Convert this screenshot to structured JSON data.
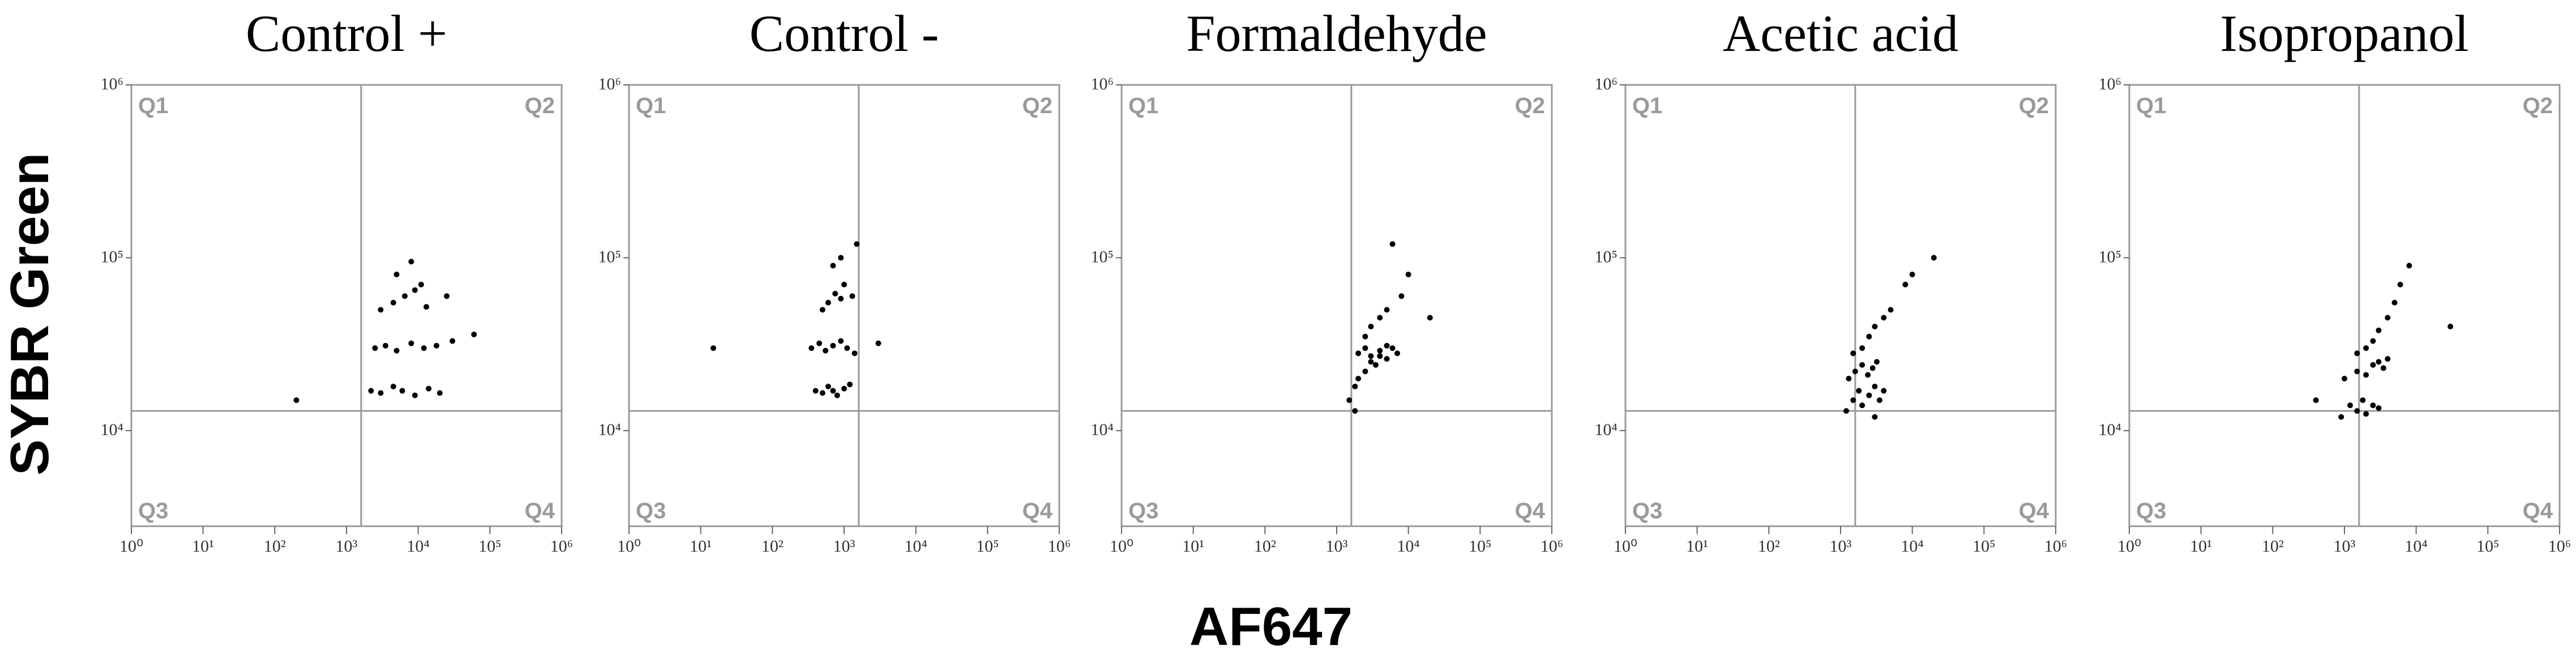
{
  "ylabel": "SYBR Green",
  "xlabel": "AF647",
  "chart_data": [
    {
      "type": "scatter",
      "title": "Control +",
      "log_x": true,
      "log_y": true,
      "color": "#000000",
      "quadrants": [
        "Q1",
        "Q2",
        "Q3",
        "Q4"
      ],
      "gate": {
        "x": 1600,
        "y": 13000
      },
      "xlim": [
        1,
        1000000
      ],
      "ylim": [
        2800,
        1000000
      ],
      "xticks": [
        {
          "value": 1,
          "label": "10⁰"
        },
        {
          "value": 10,
          "label": "10¹"
        },
        {
          "value": 100,
          "label": "10²"
        },
        {
          "value": 1000,
          "label": "10³"
        },
        {
          "value": 10000,
          "label": "10⁴"
        },
        {
          "value": 100000,
          "label": "10⁵"
        },
        {
          "value": 1000000,
          "label": "10⁶"
        }
      ],
      "yticks": [
        {
          "value": 10000,
          "label": "10⁴"
        },
        {
          "value": 100000,
          "label": "10⁵"
        },
        {
          "value": 1000000,
          "label": "10⁶"
        }
      ],
      "x": [
        200,
        2200,
        3000,
        4500,
        6000,
        9000,
        14000,
        20000,
        2500,
        3500,
        5000,
        8000,
        12000,
        18000,
        30000,
        3000,
        4500,
        6500,
        9000,
        13000,
        5000,
        8000,
        11000,
        25000,
        60000
      ],
      "values": [
        15000,
        17000,
        16500,
        18000,
        17000,
        16000,
        17500,
        16500,
        30000,
        31000,
        29000,
        32000,
        30000,
        31000,
        33000,
        50000,
        55000,
        60000,
        65000,
        52000,
        80000,
        95000,
        70000,
        60000,
        36000
      ]
    },
    {
      "type": "scatter",
      "title": "Control -",
      "log_x": true,
      "log_y": true,
      "color": "#000000",
      "quadrants": [
        "Q1",
        "Q2",
        "Q3",
        "Q4"
      ],
      "gate": {
        "x": 1600,
        "y": 13000
      },
      "xlim": [
        1,
        1000000
      ],
      "ylim": [
        2800,
        1000000
      ],
      "xticks": [
        {
          "value": 1,
          "label": "10⁰"
        },
        {
          "value": 10,
          "label": "10¹"
        },
        {
          "value": 100,
          "label": "10²"
        },
        {
          "value": 1000,
          "label": "10³"
        },
        {
          "value": 10000,
          "label": "10⁴"
        },
        {
          "value": 100000,
          "label": "10⁵"
        },
        {
          "value": 1000000,
          "label": "10⁶"
        }
      ],
      "yticks": [
        {
          "value": 10000,
          "label": "10⁴"
        },
        {
          "value": 100000,
          "label": "10⁵"
        },
        {
          "value": 1000000,
          "label": "10⁶"
        }
      ],
      "x": [
        400,
        500,
        600,
        700,
        800,
        1000,
        1200,
        350,
        450,
        550,
        700,
        900,
        1100,
        1400,
        500,
        600,
        750,
        900,
        1000,
        1300,
        700,
        900,
        1500,
        15,
        3000
      ],
      "values": [
        17000,
        16500,
        18000,
        17000,
        16000,
        17500,
        18500,
        30000,
        32000,
        29000,
        31000,
        33000,
        30000,
        28000,
        50000,
        55000,
        62000,
        58000,
        70000,
        60000,
        90000,
        100000,
        120000,
        30000,
        32000
      ]
    },
    {
      "type": "scatter",
      "title": "Formaldehyde",
      "log_x": true,
      "log_y": true,
      "color": "#000000",
      "quadrants": [
        "Q1",
        "Q2",
        "Q3",
        "Q4"
      ],
      "gate": {
        "x": 1600,
        "y": 13000
      },
      "xlim": [
        1,
        1000000
      ],
      "ylim": [
        2800,
        1000000
      ],
      "xticks": [
        {
          "value": 1,
          "label": "10⁰"
        },
        {
          "value": 10,
          "label": "10¹"
        },
        {
          "value": 100,
          "label": "10²"
        },
        {
          "value": 1000,
          "label": "10³"
        },
        {
          "value": 10000,
          "label": "10⁴"
        },
        {
          "value": 100000,
          "label": "10⁵"
        },
        {
          "value": 1000000,
          "label": "10⁶"
        }
      ],
      "yticks": [
        {
          "value": 10000,
          "label": "10⁴"
        },
        {
          "value": 100000,
          "label": "10⁵"
        },
        {
          "value": 1000000,
          "label": "10⁶"
        }
      ],
      "x": [
        1500,
        1800,
        2000,
        2500,
        3000,
        3500,
        4000,
        5000,
        2000,
        2500,
        3000,
        4000,
        5000,
        6000,
        7000,
        2500,
        3000,
        4000,
        5000,
        8000,
        10000,
        1800,
        20000,
        6000
      ],
      "values": [
        15000,
        18000,
        20000,
        22000,
        25000,
        24000,
        27000,
        26000,
        28000,
        30000,
        27000,
        29000,
        31000,
        30000,
        28000,
        35000,
        40000,
        45000,
        50000,
        60000,
        80000,
        13000,
        45000,
        120000
      ]
    },
    {
      "type": "scatter",
      "title": "Acetic acid",
      "log_x": true,
      "log_y": true,
      "color": "#000000",
      "quadrants": [
        "Q1",
        "Q2",
        "Q3",
        "Q4"
      ],
      "gate": {
        "x": 1600,
        "y": 13000
      },
      "xlim": [
        1,
        1000000
      ],
      "ylim": [
        2800,
        1000000
      ],
      "xticks": [
        {
          "value": 1,
          "label": "10⁰"
        },
        {
          "value": 10,
          "label": "10¹"
        },
        {
          "value": 100,
          "label": "10²"
        },
        {
          "value": 1000,
          "label": "10³"
        },
        {
          "value": 10000,
          "label": "10⁴"
        },
        {
          "value": 100000,
          "label": "10⁵"
        },
        {
          "value": 1000000,
          "label": "10⁶"
        }
      ],
      "yticks": [
        {
          "value": 10000,
          "label": "10⁴"
        },
        {
          "value": 100000,
          "label": "10⁵"
        },
        {
          "value": 1000000,
          "label": "10⁶"
        }
      ],
      "x": [
        1200,
        1500,
        1800,
        2000,
        2500,
        3000,
        3500,
        4000,
        1300,
        1600,
        2000,
        2400,
        2800,
        3200,
        1500,
        2000,
        2500,
        3000,
        4000,
        5000,
        8000,
        10000,
        20000,
        3000
      ],
      "values": [
        13000,
        15000,
        17000,
        14000,
        16000,
        18000,
        15000,
        17000,
        20000,
        22000,
        24000,
        21000,
        23000,
        25000,
        28000,
        30000,
        35000,
        40000,
        45000,
        50000,
        70000,
        80000,
        100000,
        12000
      ]
    },
    {
      "type": "scatter",
      "title": "Isopropanol",
      "log_x": true,
      "log_y": true,
      "color": "#000000",
      "quadrants": [
        "Q1",
        "Q2",
        "Q3",
        "Q4"
      ],
      "gate": {
        "x": 1600,
        "y": 13000
      },
      "xlim": [
        1,
        1000000
      ],
      "ylim": [
        2800,
        1000000
      ],
      "xticks": [
        {
          "value": 1,
          "label": "10⁰"
        },
        {
          "value": 10,
          "label": "10¹"
        },
        {
          "value": 100,
          "label": "10²"
        },
        {
          "value": 1000,
          "label": "10³"
        },
        {
          "value": 10000,
          "label": "10⁴"
        },
        {
          "value": 100000,
          "label": "10⁵"
        },
        {
          "value": 1000000,
          "label": "10⁶"
        }
      ],
      "yticks": [
        {
          "value": 10000,
          "label": "10⁴"
        },
        {
          "value": 100000,
          "label": "10⁵"
        },
        {
          "value": 1000000,
          "label": "10⁶"
        }
      ],
      "x": [
        900,
        1200,
        1500,
        1800,
        2000,
        2500,
        3000,
        1000,
        1500,
        2000,
        2500,
        3000,
        3500,
        4000,
        1500,
        2000,
        2500,
        3000,
        4000,
        5000,
        6000,
        8000,
        30000,
        400
      ],
      "values": [
        12000,
        14000,
        13000,
        15000,
        12500,
        14000,
        13500,
        20000,
        22000,
        21000,
        24000,
        25000,
        23000,
        26000,
        28000,
        30000,
        33000,
        38000,
        45000,
        55000,
        70000,
        90000,
        40000,
        15000
      ]
    }
  ]
}
